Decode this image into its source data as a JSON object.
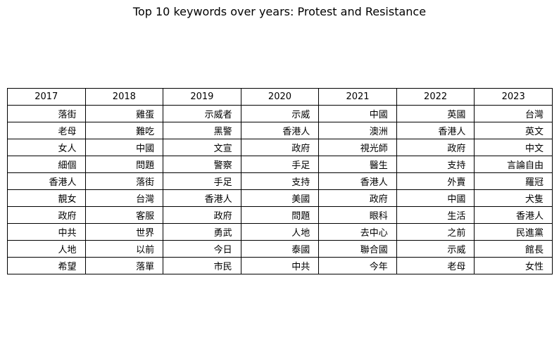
{
  "chart_data": {
    "type": "table",
    "title": "Top 10 keywords over years: Protest and Resistance",
    "columns": [
      "2017",
      "2018",
      "2019",
      "2020",
      "2021",
      "2022",
      "2023"
    ],
    "rows": [
      [
        "落街",
        "雞蛋",
        "示威者",
        "示威",
        "中國",
        "英國",
        "台灣"
      ],
      [
        "老母",
        "難吃",
        "黑警",
        "香港人",
        "澳洲",
        "香港人",
        "英文"
      ],
      [
        "女人",
        "中國",
        "文宣",
        "政府",
        "視光師",
        "政府",
        "中文"
      ],
      [
        "細個",
        "問題",
        "警察",
        "手足",
        "醫生",
        "支持",
        "言論自由"
      ],
      [
        "香港人",
        "落街",
        "手足",
        "支持",
        "香港人",
        "外賣",
        "羅冠"
      ],
      [
        "靚女",
        "台灣",
        "香港人",
        "美國",
        "政府",
        "中國",
        "犬隻"
      ],
      [
        "政府",
        "客服",
        "政府",
        "問題",
        "眼科",
        "生活",
        "香港人"
      ],
      [
        "中共",
        "世界",
        "勇武",
        "人地",
        "去中心",
        "之前",
        "民進黨"
      ],
      [
        "人地",
        "以前",
        "今日",
        "泰國",
        "聯合國",
        "示威",
        "館長"
      ],
      [
        "希望",
        "落單",
        "市民",
        "中共",
        "今年",
        "老母",
        "女性"
      ]
    ]
  }
}
